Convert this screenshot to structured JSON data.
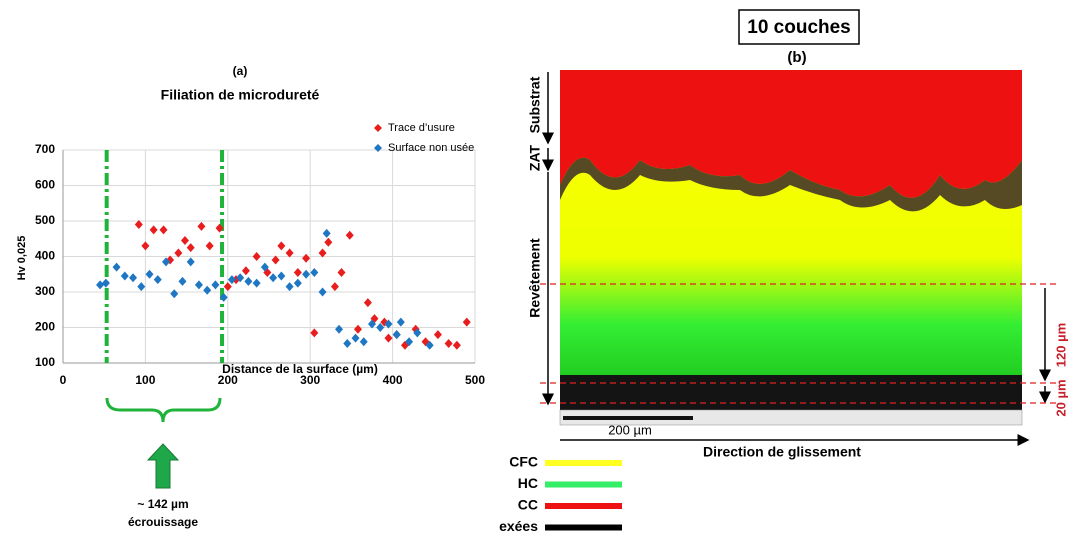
{
  "chart_data": {
    "type": "scatter",
    "label": "(a)",
    "title": "Filiation de microdureté",
    "x_label": "Distance de la surface (µm)",
    "y_label": "Hv 0,025",
    "xlim": [
      0,
      500
    ],
    "ylim": [
      100,
      700
    ],
    "xticks": [
      0,
      100,
      200,
      300,
      400,
      500
    ],
    "yticks": [
      100,
      200,
      300,
      400,
      500,
      600,
      700
    ],
    "grid": true,
    "legend": "upper right",
    "vlines": [
      53,
      193
    ],
    "vline_color": "#1fb33a",
    "annotations": [
      "~ 142 µm",
      "écrouissage"
    ],
    "series": [
      {
        "name": "Trace d’usure",
        "color": "#e81e1e",
        "x": [
          92,
          100,
          110,
          122,
          130,
          140,
          148,
          155,
          168,
          178,
          190,
          200,
          210,
          222,
          235,
          248,
          258,
          265,
          275,
          285,
          295,
          305,
          315,
          322,
          330,
          338,
          348,
          358,
          370,
          378,
          390,
          395,
          405,
          415,
          428,
          440,
          455,
          468,
          478,
          490
        ],
        "values": [
          490,
          430,
          475,
          475,
          390,
          410,
          445,
          425,
          485,
          430,
          480,
          315,
          335,
          360,
          400,
          355,
          390,
          430,
          410,
          355,
          395,
          185,
          410,
          440,
          315,
          355,
          460,
          195,
          270,
          225,
          215,
          170,
          180,
          150,
          195,
          160,
          180,
          155,
          150,
          215
        ]
      },
      {
        "name": "Surface non usée",
        "color": "#1f77c4",
        "x": [
          45,
          52,
          65,
          75,
          85,
          95,
          105,
          115,
          125,
          135,
          145,
          155,
          165,
          175,
          185,
          195,
          205,
          215,
          225,
          235,
          245,
          255,
          265,
          275,
          285,
          295,
          305,
          315,
          320,
          335,
          345,
          355,
          365,
          375,
          385,
          395,
          405,
          410,
          420,
          430,
          445
        ],
        "values": [
          320,
          325,
          370,
          345,
          340,
          315,
          350,
          335,
          385,
          295,
          330,
          385,
          320,
          305,
          320,
          285,
          335,
          340,
          330,
          325,
          370,
          340,
          345,
          315,
          325,
          350,
          355,
          300,
          465,
          195,
          155,
          170,
          160,
          210,
          200,
          210,
          180,
          215,
          160,
          185,
          150
        ]
      }
    ]
  },
  "figure_b": {
    "title": "10 couches",
    "label": "(b)",
    "zones": [
      "Substrat",
      "ZAT",
      "Revêtement"
    ],
    "scale_labels": [
      "120 µm",
      "20 µm"
    ],
    "scale_bar": "200 µm",
    "direction": "Direction de glissement",
    "phases": [
      {
        "name": "CFC",
        "color": "#ffff22"
      },
      {
        "name": "HC",
        "color": "#33ee66"
      },
      {
        "name": "CC",
        "color": "#ee1111"
      },
      {
        "name": "exées",
        "color": "#000000"
      }
    ]
  }
}
